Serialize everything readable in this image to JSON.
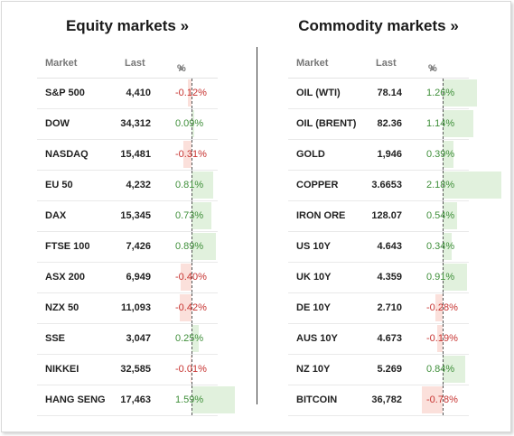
{
  "equity": {
    "title": "Equity markets »",
    "headers": {
      "market": "Market",
      "last": "Last",
      "pct": "%",
      "sort_icon": "▲"
    },
    "rows": [
      {
        "name": "S&P 500",
        "last": "4,410",
        "pct": "-0.12%",
        "change": -0.12
      },
      {
        "name": "DOW",
        "last": "34,312",
        "pct": "0.09%",
        "change": 0.09
      },
      {
        "name": "NASDAQ",
        "last": "15,481",
        "pct": "-0.31%",
        "change": -0.31
      },
      {
        "name": "EU 50",
        "last": "4,232",
        "pct": "0.81%",
        "change": 0.81
      },
      {
        "name": "DAX",
        "last": "15,345",
        "pct": "0.73%",
        "change": 0.73
      },
      {
        "name": "FTSE 100",
        "last": "7,426",
        "pct": "0.89%",
        "change": 0.89
      },
      {
        "name": "ASX 200",
        "last": "6,949",
        "pct": "-0.40%",
        "change": -0.4
      },
      {
        "name": "NZX 50",
        "last": "11,093",
        "pct": "-0.42%",
        "change": -0.42
      },
      {
        "name": "SSE",
        "last": "3,047",
        "pct": "0.25%",
        "change": 0.25
      },
      {
        "name": "NIKKEI",
        "last": "32,585",
        "pct": "-0.01%",
        "change": -0.01
      },
      {
        "name": "HANG SENG",
        "last": "17,463",
        "pct": "1.59%",
        "change": 1.59
      }
    ]
  },
  "commodity": {
    "title": "Commodity markets »",
    "headers": {
      "market": "Market",
      "last": "Last",
      "pct": "%",
      "sort_icon": "▲"
    },
    "rows": [
      {
        "name": "OIL (WTI)",
        "last": "78.14",
        "pct": "1.26%",
        "change": 1.26
      },
      {
        "name": "OIL (BRENT)",
        "last": "82.36",
        "pct": "1.14%",
        "change": 1.14
      },
      {
        "name": "GOLD",
        "last": "1,946",
        "pct": "0.39%",
        "change": 0.39
      },
      {
        "name": "COPPER",
        "last": "3.6653",
        "pct": "2.18%",
        "change": 2.18
      },
      {
        "name": "IRON ORE",
        "last": "128.07",
        "pct": "0.54%",
        "change": 0.54
      },
      {
        "name": "US 10Y",
        "last": "4.643",
        "pct": "0.34%",
        "change": 0.34
      },
      {
        "name": "UK 10Y",
        "last": "4.359",
        "pct": "0.91%",
        "change": 0.91
      },
      {
        "name": "DE 10Y",
        "last": "2.710",
        "pct": "-0.28%",
        "change": -0.28
      },
      {
        "name": "AUS 10Y",
        "last": "4.673",
        "pct": "-0.19%",
        "change": -0.19
      },
      {
        "name": "NZ 10Y",
        "last": "5.269",
        "pct": "0.84%",
        "change": 0.84
      },
      {
        "name": "BITCOIN",
        "last": "36,782",
        "pct": "-0.78%",
        "change": -0.78
      }
    ]
  },
  "colors": {
    "positive_text": "#3f8f3a",
    "negative_text": "#c73330",
    "positive_bar": "#e1f1dd",
    "negative_bar": "#fbe0db"
  }
}
